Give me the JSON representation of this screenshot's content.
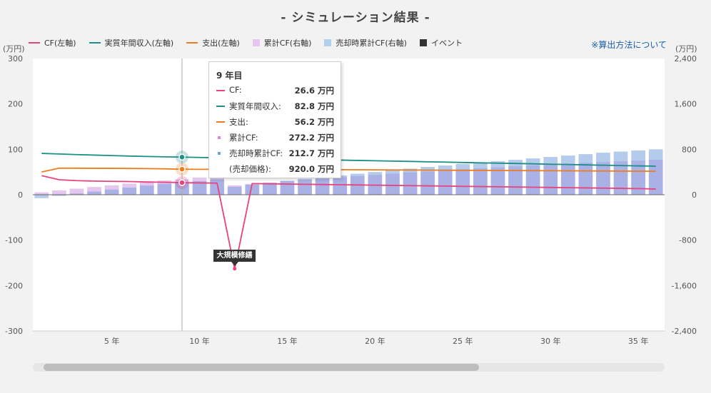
{
  "title": "- シミュレーション結果 -",
  "link_text": "※算出方法について",
  "units": {
    "left": "(万円)",
    "right": "(万円)"
  },
  "legend": [
    {
      "label": "CF(左軸)",
      "kind": "line",
      "color": "#e8437f"
    },
    {
      "label": "実質年間収入(左軸)",
      "kind": "line",
      "color": "#1a9086"
    },
    {
      "label": "支出(左軸)",
      "kind": "line",
      "color": "#ef7c1c"
    },
    {
      "label": "累計CF(右軸)",
      "kind": "box",
      "color": "#e4c6ef"
    },
    {
      "label": "売却時累計CF(右軸)",
      "kind": "box",
      "color": "#aed0ec"
    },
    {
      "label": "イベント",
      "kind": "box",
      "color": "#333333"
    }
  ],
  "tooltip": {
    "header": "9 年目",
    "rows": [
      {
        "label": "CF:",
        "value": "26.6 万円",
        "mark": "line",
        "color": "#e8437f"
      },
      {
        "label": "実質年間収入:",
        "value": "82.8 万円",
        "mark": "line",
        "color": "#1a9086"
      },
      {
        "label": "支出:",
        "value": "56.2 万円",
        "mark": "line",
        "color": "#ef7c1c"
      },
      {
        "label": "累計CF:",
        "value": "272.2 万円",
        "mark": "dot",
        "color": "#d78ad6"
      },
      {
        "label": "売却時累計CF:",
        "value": "212.7 万円",
        "mark": "dot",
        "color": "#6fa3d6"
      },
      {
        "label": "(売却価格):",
        "value": "920.0 万円",
        "mark": "none",
        "color": ""
      }
    ]
  },
  "event_label": "大規模修繕",
  "chart_data": {
    "type": "combo",
    "x": [
      1,
      2,
      3,
      4,
      5,
      6,
      7,
      8,
      9,
      10,
      11,
      12,
      13,
      14,
      15,
      16,
      17,
      18,
      19,
      20,
      21,
      22,
      23,
      24,
      25,
      26,
      27,
      28,
      29,
      30,
      31,
      32,
      33,
      34,
      35,
      36
    ],
    "x_ticks": [
      5,
      10,
      15,
      20,
      25,
      30,
      35
    ],
    "x_tick_suffix": " 年",
    "y_left": {
      "min": -300,
      "max": 300,
      "ticks": [
        300,
        200,
        100,
        0,
        -100,
        -200,
        -300
      ]
    },
    "y_right": {
      "min": -2400,
      "max": 2400,
      "ticks": [
        "2,400",
        "1,600",
        "800",
        "0",
        "-800",
        "-1,600",
        "-2,400"
      ]
    },
    "y_left_tick_labels": [
      "300",
      "200",
      "100",
      "0",
      "-100",
      "-200",
      "-300"
    ],
    "series": [
      {
        "name": "CF(左軸)",
        "axis": "left",
        "kind": "line",
        "values": [
          42,
          33,
          31,
          30,
          29.5,
          29,
          28,
          27.5,
          26.6,
          26,
          25.5,
          -163,
          24.5,
          24,
          23.5,
          23,
          22.5,
          22,
          21.5,
          21,
          20.5,
          20,
          19.5,
          19,
          18.5,
          18,
          17.5,
          17,
          16.5,
          16,
          15.5,
          15,
          14.5,
          14,
          13.5,
          12.5
        ]
      },
      {
        "name": "実質年間収入(左軸)",
        "axis": "left",
        "kind": "line",
        "values": [
          91,
          89.7,
          88.4,
          87.3,
          86.2,
          85.1,
          84.2,
          83.5,
          82.8,
          82.1,
          81.4,
          80.6,
          79.9,
          79.2,
          78.5,
          77.7,
          77,
          76.3,
          75.5,
          74.8,
          74,
          73.3,
          72.5,
          71.8,
          71,
          70.2,
          69.5,
          68.8,
          68,
          67.2,
          66.5,
          65.7,
          65,
          64.2,
          63.5,
          62.8
        ]
      },
      {
        "name": "支出(左軸)",
        "axis": "left",
        "kind": "line",
        "values": [
          50,
          58.5,
          58.4,
          58.2,
          58,
          57.8,
          57.5,
          57,
          56.2,
          56,
          56,
          56,
          56,
          56,
          55.8,
          55.6,
          55.4,
          55.2,
          55,
          54.8,
          54.6,
          54.4,
          54.2,
          54,
          53.8,
          53.6,
          53.4,
          53.2,
          53,
          52.8,
          52.6,
          52.4,
          52.2,
          52,
          51.8,
          51.6
        ]
      },
      {
        "name": "累計CF(右軸)",
        "axis": "right",
        "kind": "bar",
        "values": [
          42,
          75,
          106,
          136,
          166,
          195,
          223,
          250,
          272.2,
          303,
          328,
          165,
          190,
          214,
          238,
          261,
          284,
          306,
          328,
          349,
          370,
          390,
          409,
          428,
          447,
          465,
          482,
          499,
          515,
          531,
          546,
          561,
          575,
          589,
          602,
          615
        ]
      },
      {
        "name": "売却時累計CF(右軸)",
        "axis": "right",
        "kind": "bar",
        "values": [
          -60,
          -20,
          20,
          55,
          90,
          125,
          160,
          190,
          212.7,
          240,
          270,
          140,
          175,
          210,
          245,
          280,
          310,
          340,
          370,
          400,
          430,
          460,
          490,
          515,
          540,
          565,
          590,
          615,
          640,
          665,
          690,
          715,
          740,
          760,
          780,
          800
        ]
      }
    ],
    "highlight_x": 9,
    "event": {
      "x": 12,
      "label": "大規模修繕"
    }
  }
}
